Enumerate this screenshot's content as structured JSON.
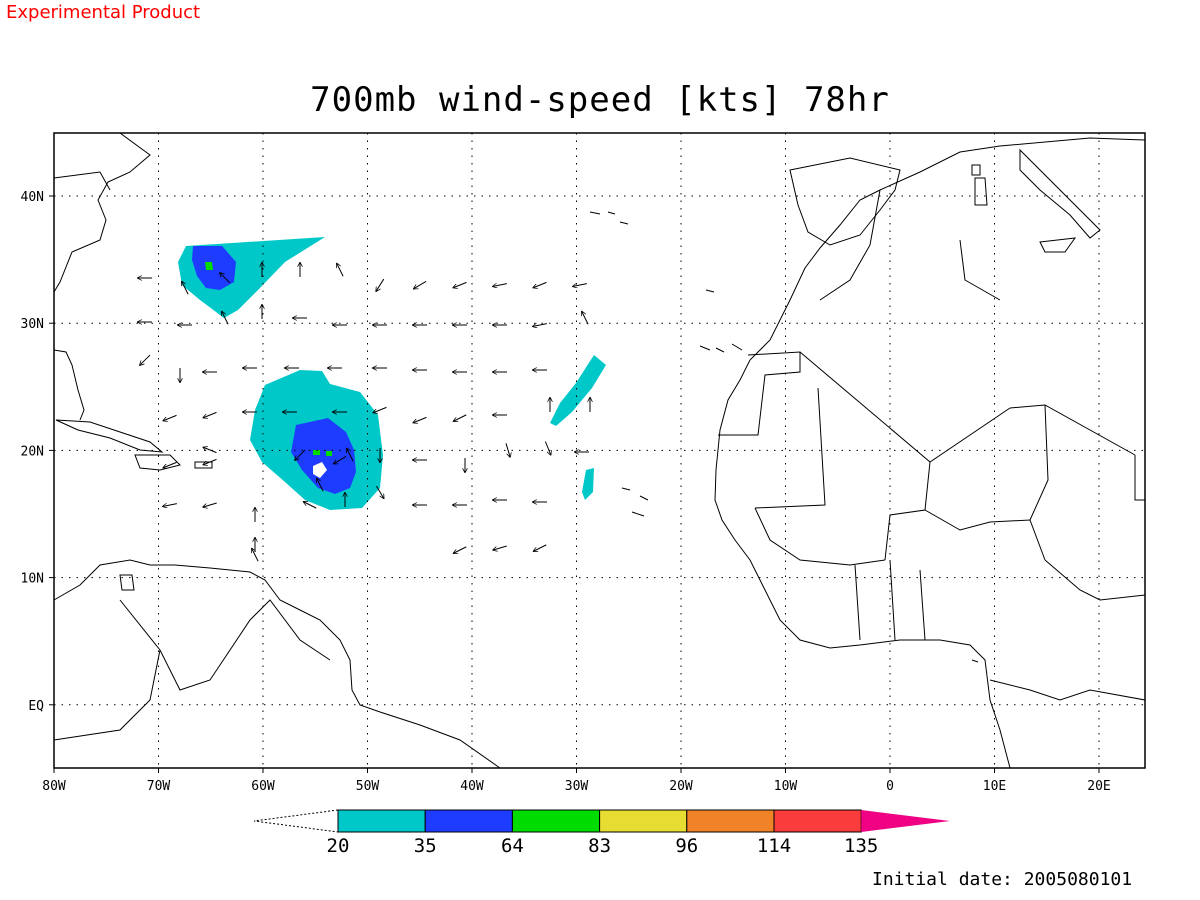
{
  "header": {
    "product_label": "Experimental Product",
    "title": "700mb wind-speed [kts] 78hr"
  },
  "axes": {
    "lon_labels": [
      "80W",
      "70W",
      "60W",
      "50W",
      "40W",
      "30W",
      "20W",
      "10W",
      "0",
      "10E",
      "20E"
    ],
    "lat_labels": [
      "40N",
      "30N",
      "20N",
      "10N",
      "EQ"
    ]
  },
  "legend": {
    "bins": [
      {
        "color": "#00c8c8"
      },
      {
        "color": "#1e3cff"
      },
      {
        "color": "#00dc00"
      },
      {
        "color": "#e6dc32"
      },
      {
        "color": "#f08228"
      },
      {
        "color": "#fa3c3c"
      }
    ],
    "over_color": "#f00082",
    "ticks": [
      "20",
      "35",
      "64",
      "83",
      "96",
      "114",
      "135"
    ]
  },
  "footer": {
    "initial_date": "Initial date: 2005080101"
  }
}
